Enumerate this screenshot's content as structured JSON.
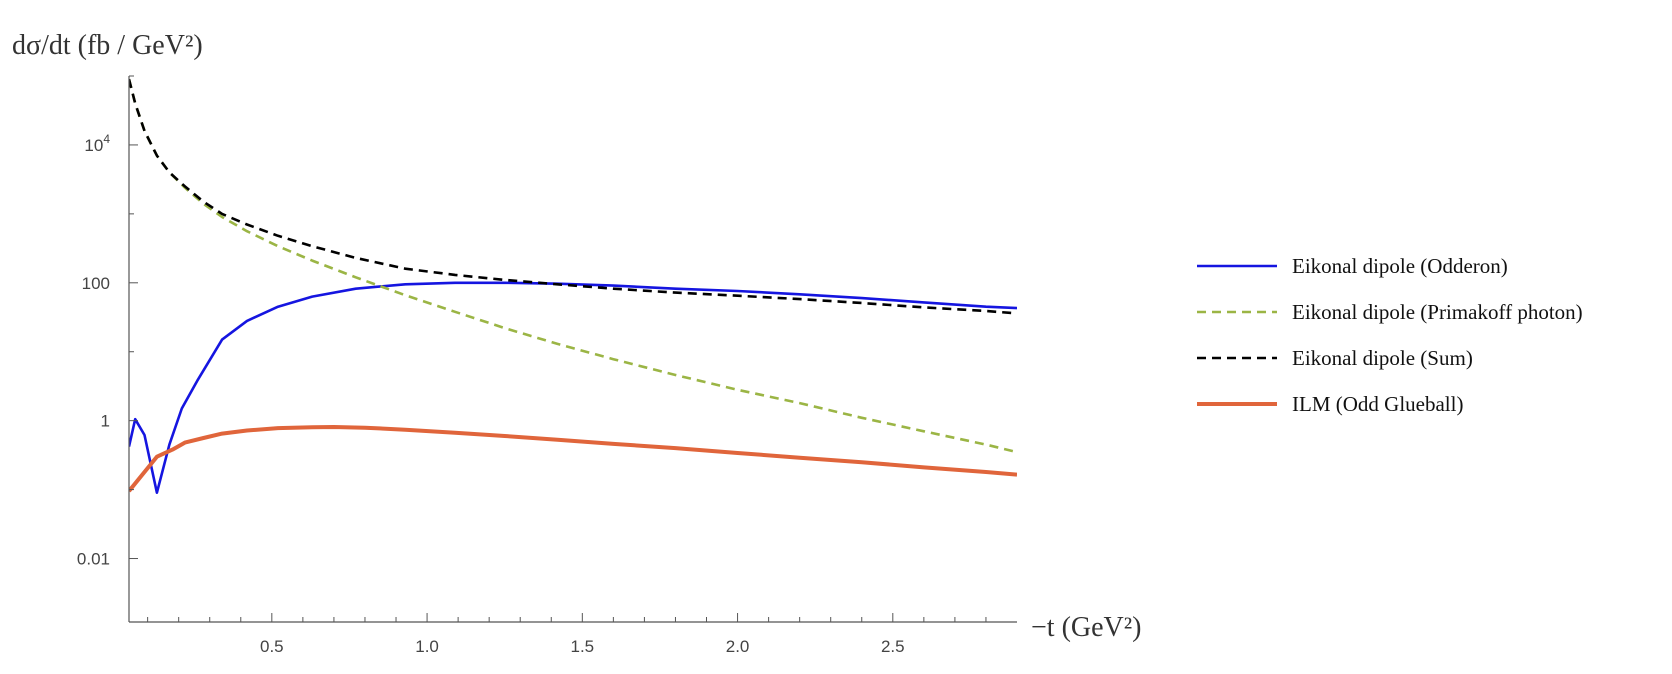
{
  "chart_data": {
    "type": "line",
    "title": "",
    "xlabel": "−t (GeV²)",
    "ylabel": "dσ/dt (fb / GeV²)",
    "xlim": [
      0.04,
      2.9
    ],
    "ylim": [
      0.0012,
      100000
    ],
    "yscale": "log",
    "grid": false,
    "legend_position": "right",
    "x_ticks": [
      {
        "value": 0.5,
        "label": "0.5"
      },
      {
        "value": 1.0,
        "label": "1.0"
      },
      {
        "value": 1.5,
        "label": "1.5"
      },
      {
        "value": 2.0,
        "label": "2.0"
      },
      {
        "value": 2.5,
        "label": "2.5"
      }
    ],
    "y_ticks": [
      {
        "value": 0.01,
        "label": "0.01",
        "sup": ""
      },
      {
        "value": 1,
        "label": "1",
        "sup": ""
      },
      {
        "value": 100,
        "label": "100",
        "sup": ""
      },
      {
        "value": 10000,
        "label": "10",
        "sup": "4"
      }
    ],
    "series": [
      {
        "name": "Eikonal dipole (Odderon)",
        "color": "#1515e0",
        "dash": "solid",
        "x": [
          0.04,
          0.06,
          0.09,
          0.13,
          0.17,
          0.21,
          0.26,
          0.34,
          0.42,
          0.52,
          0.63,
          0.77,
          0.93,
          1.09,
          1.25,
          1.42,
          1.6,
          1.8,
          2.0,
          2.2,
          2.4,
          2.6,
          2.8,
          2.9
        ],
        "y": [
          0.42,
          1.05,
          0.62,
          0.09,
          0.45,
          1.5,
          3.8,
          15,
          28,
          45,
          63,
          82,
          95,
          100,
          100,
          97,
          91,
          82,
          76,
          68,
          60,
          52,
          45,
          43
        ]
      },
      {
        "name": "Eikonal dipole (Primakoff photon)",
        "color": "#9bb545",
        "dash": "dashed",
        "x": [
          0.04,
          0.06,
          0.09,
          0.13,
          0.17,
          0.22,
          0.28,
          0.34,
          0.42,
          0.52,
          0.63,
          0.77,
          0.93,
          1.09,
          1.25,
          1.42,
          1.6,
          1.8,
          2.0,
          2.2,
          2.4,
          2.6,
          2.8,
          2.9
        ],
        "y": [
          90000,
          40000,
          16000,
          7000,
          4000,
          2400,
          1400,
          900,
          560,
          340,
          210,
          120,
          66,
          38,
          22,
          13,
          7.8,
          4.6,
          2.8,
          1.8,
          1.1,
          0.7,
          0.45,
          0.35
        ]
      },
      {
        "name": "Eikonal dipole (Sum)",
        "color": "#000000",
        "dash": "dashed",
        "x": [
          0.04,
          0.06,
          0.09,
          0.13,
          0.17,
          0.22,
          0.28,
          0.34,
          0.42,
          0.52,
          0.63,
          0.77,
          0.93,
          1.09,
          1.25,
          1.42,
          1.6,
          1.8,
          2.0,
          2.2,
          2.4,
          2.6,
          2.8,
          2.9
        ],
        "y": [
          90000,
          40000,
          16000,
          7000,
          4000,
          2500,
          1500,
          1000,
          700,
          480,
          340,
          230,
          160,
          130,
          110,
          95,
          82,
          72,
          65,
          58,
          51,
          44,
          39,
          36
        ]
      },
      {
        "name": "ILM (Odd Glueball)",
        "color": "#e0653b",
        "dash": "solid",
        "x": [
          0.04,
          0.09,
          0.13,
          0.18,
          0.22,
          0.28,
          0.34,
          0.42,
          0.52,
          0.63,
          0.7,
          0.8,
          0.93,
          1.09,
          1.25,
          1.42,
          1.6,
          1.8,
          2.0,
          2.2,
          2.4,
          2.6,
          2.8,
          2.9
        ],
        "y": [
          0.095,
          0.18,
          0.3,
          0.38,
          0.48,
          0.56,
          0.65,
          0.72,
          0.78,
          0.8,
          0.81,
          0.79,
          0.74,
          0.67,
          0.6,
          0.53,
          0.46,
          0.4,
          0.34,
          0.29,
          0.25,
          0.21,
          0.18,
          0.165
        ]
      }
    ]
  }
}
